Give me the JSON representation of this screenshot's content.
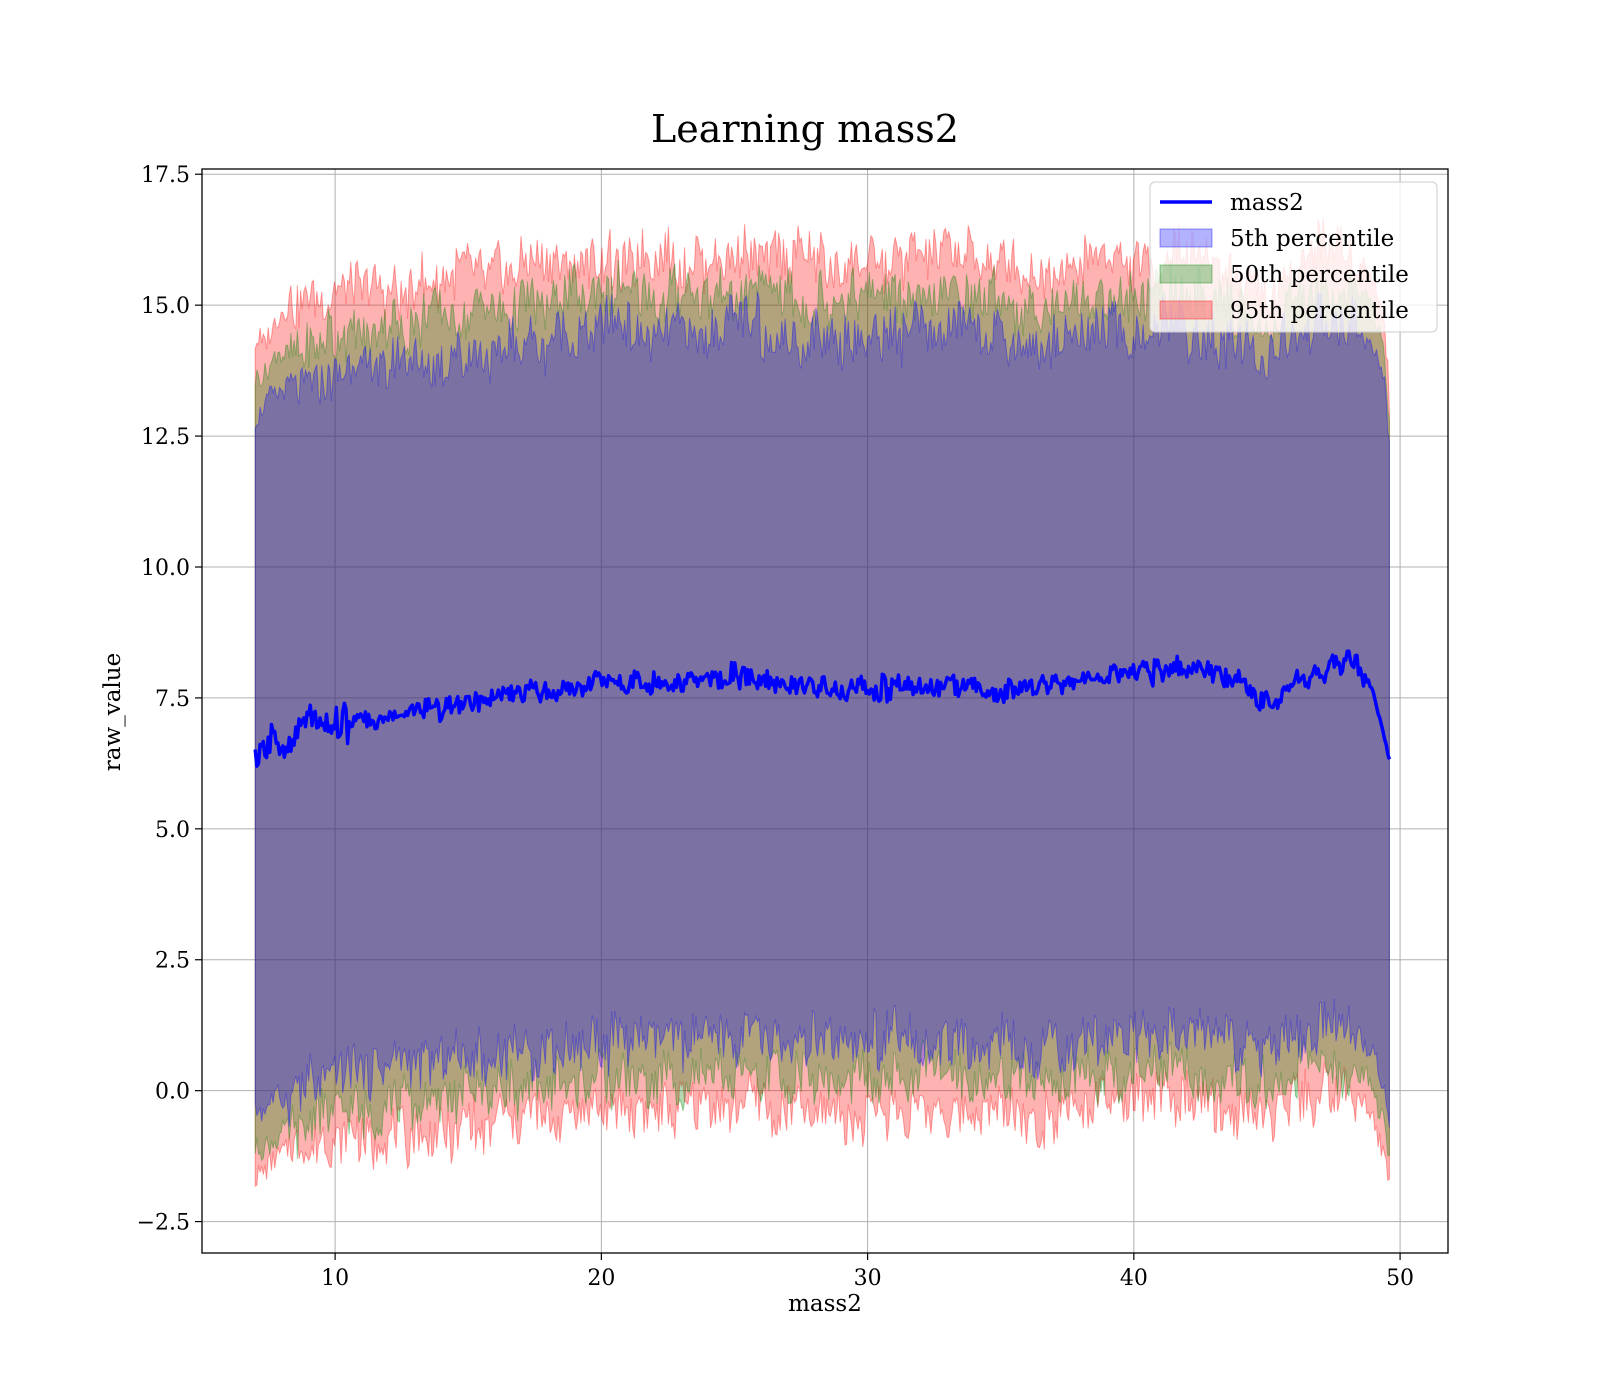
{
  "chart_data": {
    "type": "area",
    "title": "Learning mass2",
    "xlabel": "mass2",
    "ylabel": "raw_value",
    "xlim": [
      5,
      51.8
    ],
    "ylim": [
      -3.1,
      17.6
    ],
    "xticks": [
      10,
      20,
      30,
      40,
      50
    ],
    "xtick_labels": [
      "10",
      "20",
      "30",
      "40",
      "50"
    ],
    "yticks": [
      -2.5,
      0.0,
      2.5,
      5.0,
      7.5,
      10.0,
      12.5,
      15.0,
      17.5
    ],
    "ytick_labels": [
      "−2.5",
      "0.0",
      "2.5",
      "5.0",
      "7.5",
      "10.0",
      "12.5",
      "15.0",
      "17.5"
    ],
    "grid": true,
    "legend_position": "top-right",
    "legend": [
      {
        "label": "mass2",
        "kind": "line",
        "color": "#0000ff"
      },
      {
        "label": "5th percentile",
        "kind": "patch",
        "color": "#0000ff",
        "alpha": 0.3
      },
      {
        "label": "50th percentile",
        "kind": "patch",
        "color": "#008000",
        "alpha": 0.3
      },
      {
        "label": "95th percentile",
        "kind": "patch",
        "color": "#ff0000",
        "alpha": 0.3
      }
    ],
    "x_start": 7.0,
    "x_end": 49.6,
    "line": {
      "name": "mass2",
      "color": "#0000ff",
      "x": [
        7.0,
        7.2,
        7.5,
        8.0,
        8.5,
        9.0,
        9.5,
        10.0,
        11.0,
        12.0,
        13.0,
        14.0,
        15.0,
        16.0,
        17.0,
        18.0,
        19.0,
        20.0,
        21.0,
        22.0,
        23.0,
        24.0,
        25.0,
        26.0,
        27.0,
        28.0,
        29.0,
        30.0,
        31.0,
        32.0,
        33.0,
        34.0,
        35.0,
        36.0,
        37.0,
        38.0,
        39.0,
        40.0,
        41.0,
        42.0,
        43.0,
        44.0,
        45.0,
        45.5,
        46.0,
        47.0,
        48.0,
        48.5,
        49.0,
        49.3,
        49.6
      ],
      "y": [
        6.3,
        6.2,
        6.6,
        6.7,
        6.8,
        7.1,
        7.1,
        7.0,
        7.0,
        7.1,
        7.3,
        7.3,
        7.4,
        7.5,
        7.6,
        7.6,
        7.7,
        7.9,
        7.8,
        7.8,
        7.8,
        7.9,
        7.9,
        7.9,
        7.7,
        7.7,
        7.6,
        7.7,
        7.7,
        7.8,
        7.7,
        7.7,
        7.6,
        7.7,
        7.8,
        7.9,
        7.9,
        8.0,
        8.0,
        8.1,
        8.0,
        7.8,
        7.4,
        7.4,
        7.8,
        8.0,
        8.2,
        8.1,
        7.6,
        7.0,
        6.3
      ]
    },
    "bands": [
      {
        "name": "95th percentile",
        "color": "#ff0000",
        "alpha": 0.3,
        "x": [
          7.0,
          7.5,
          8.0,
          9.0,
          10.0,
          12.0,
          14.0,
          16.0,
          18.0,
          20.0,
          22.0,
          24.0,
          26.0,
          28.0,
          30.0,
          32.0,
          34.0,
          36.0,
          38.0,
          40.0,
          42.0,
          44.0,
          45.0,
          46.0,
          47.0,
          48.0,
          49.0,
          49.4,
          49.6
        ],
        "upper": [
          14.2,
          14.5,
          14.8,
          15.0,
          15.2,
          15.3,
          15.5,
          15.6,
          15.7,
          15.9,
          15.8,
          15.9,
          16.0,
          15.8,
          15.8,
          15.9,
          15.9,
          15.6,
          15.8,
          15.9,
          15.9,
          15.6,
          15.1,
          15.6,
          16.0,
          16.1,
          15.5,
          14.7,
          13.2
        ],
        "lower": [
          -1.7,
          -1.5,
          -1.3,
          -1.1,
          -1.0,
          -0.9,
          -0.8,
          -0.6,
          -0.5,
          -0.4,
          -0.4,
          -0.3,
          -0.3,
          -0.4,
          -0.4,
          -0.3,
          -0.4,
          -0.5,
          -0.3,
          -0.3,
          -0.2,
          -0.4,
          -0.6,
          -0.3,
          -0.1,
          -0.1,
          -0.5,
          -1.2,
          -1.8
        ]
      },
      {
        "name": "50th percentile",
        "color": "#008000",
        "alpha": 0.3,
        "x": [
          7.0,
          7.5,
          8.0,
          9.0,
          10.0,
          12.0,
          14.0,
          16.0,
          18.0,
          20.0,
          22.0,
          24.0,
          26.0,
          28.0,
          30.0,
          32.0,
          34.0,
          36.0,
          38.0,
          40.0,
          42.0,
          44.0,
          45.0,
          46.0,
          47.0,
          48.0,
          49.0,
          49.4,
          49.6
        ],
        "upper": [
          13.6,
          13.8,
          14.1,
          14.3,
          14.5,
          14.6,
          14.8,
          14.9,
          15.0,
          15.3,
          15.1,
          15.2,
          15.3,
          15.1,
          15.1,
          15.2,
          15.2,
          14.9,
          15.1,
          15.2,
          15.2,
          14.9,
          14.5,
          15.0,
          15.3,
          15.4,
          14.9,
          14.3,
          12.8
        ],
        "lower": [
          -1.2,
          -1.0,
          -0.8,
          -0.6,
          -0.4,
          -0.3,
          -0.2,
          0.0,
          0.1,
          0.2,
          0.2,
          0.3,
          0.3,
          0.2,
          0.2,
          0.3,
          0.2,
          0.1,
          0.3,
          0.3,
          0.4,
          0.2,
          0.0,
          0.3,
          0.5,
          0.5,
          0.1,
          -0.6,
          -1.4
        ]
      },
      {
        "name": "5th percentile",
        "color": "#0000ff",
        "alpha": 0.3,
        "x": [
          7.0,
          7.5,
          8.0,
          9.0,
          10.0,
          12.0,
          14.0,
          16.0,
          18.0,
          20.0,
          22.0,
          24.0,
          26.0,
          28.0,
          30.0,
          32.0,
          34.0,
          36.0,
          38.0,
          40.0,
          42.0,
          44.0,
          45.0,
          46.0,
          47.0,
          48.0,
          49.0,
          49.4,
          49.6
        ],
        "upper": [
          12.9,
          13.1,
          13.4,
          13.6,
          13.8,
          13.9,
          14.0,
          14.2,
          14.3,
          14.6,
          14.4,
          14.5,
          14.6,
          14.4,
          14.4,
          14.5,
          14.5,
          14.2,
          14.4,
          14.5,
          14.5,
          14.2,
          13.9,
          14.3,
          14.6,
          14.7,
          14.2,
          13.6,
          12.2
        ],
        "lower": [
          -0.5,
          -0.3,
          -0.1,
          0.1,
          0.3,
          0.4,
          0.5,
          0.7,
          0.8,
          0.9,
          0.9,
          1.0,
          1.0,
          0.9,
          0.9,
          1.0,
          0.9,
          0.8,
          1.0,
          1.0,
          1.1,
          0.9,
          0.7,
          1.0,
          1.2,
          1.2,
          0.8,
          0.1,
          -0.7
        ]
      }
    ]
  }
}
